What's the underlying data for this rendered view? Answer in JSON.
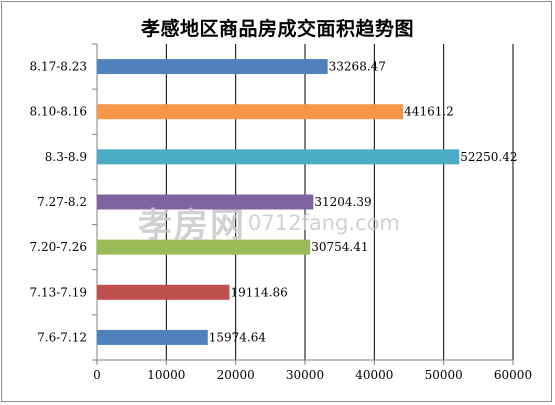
{
  "chart_data": {
    "type": "bar",
    "orientation": "horizontal",
    "title": "孝感地区商品房成交面积趋势图",
    "categories": [
      "7.6-7.12",
      "7.13-7.19",
      "7.20-7.26",
      "7.27-8.2",
      "8.3-8.9",
      "8.10-8.16",
      "8.17-8.23"
    ],
    "values": [
      15974.64,
      19114.86,
      30754.41,
      31204.39,
      52250.42,
      44161.2,
      33268.47
    ],
    "value_labels": [
      "15974.64",
      "19114.86",
      "30754.41",
      "31204.39",
      "52250.42",
      "44161.2",
      "33268.47"
    ],
    "bar_colors": [
      "#4f81bd",
      "#c0504d",
      "#9bbb59",
      "#8064a2",
      "#4bacc6",
      "#f79646",
      "#4f81bd"
    ],
    "xlim": [
      0,
      60000
    ],
    "xticks": [
      0,
      10000,
      20000,
      30000,
      40000,
      50000,
      60000
    ],
    "xtick_labels": [
      "0",
      "10000",
      "20000",
      "30000",
      "40000",
      "50000",
      "60000"
    ],
    "xlabel": "",
    "ylabel": "",
    "grid": "vertical",
    "legend": "none"
  },
  "watermark": {
    "brand": "孝房网",
    "site": "0712fang.com"
  }
}
